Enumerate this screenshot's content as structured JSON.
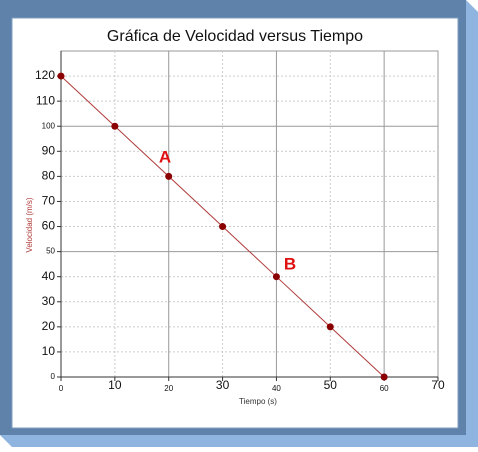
{
  "chart_data": {
    "type": "line",
    "title": "Gráfica de Velocidad versus Tiempo",
    "x_label": "Tiempo (s)",
    "y_label": "Velocidad (m/s)",
    "x": [
      0,
      10,
      20,
      30,
      40,
      50,
      60
    ],
    "series": [
      {
        "name": "Velocidad",
        "color": "#b03a3a",
        "marker_color": "#8b0000",
        "values": [
          120,
          100,
          80,
          60,
          40,
          20,
          0
        ]
      }
    ],
    "xlim": [
      0,
      70
    ],
    "xticks": [
      0,
      10,
      20,
      30,
      40,
      50,
      60,
      70
    ],
    "ylim": [
      0,
      130
    ],
    "yticks": [
      0,
      10,
      20,
      30,
      40,
      50,
      60,
      70,
      80,
      90,
      100,
      110,
      120
    ],
    "grid": true,
    "annotations": [
      "A",
      "B"
    ]
  }
}
